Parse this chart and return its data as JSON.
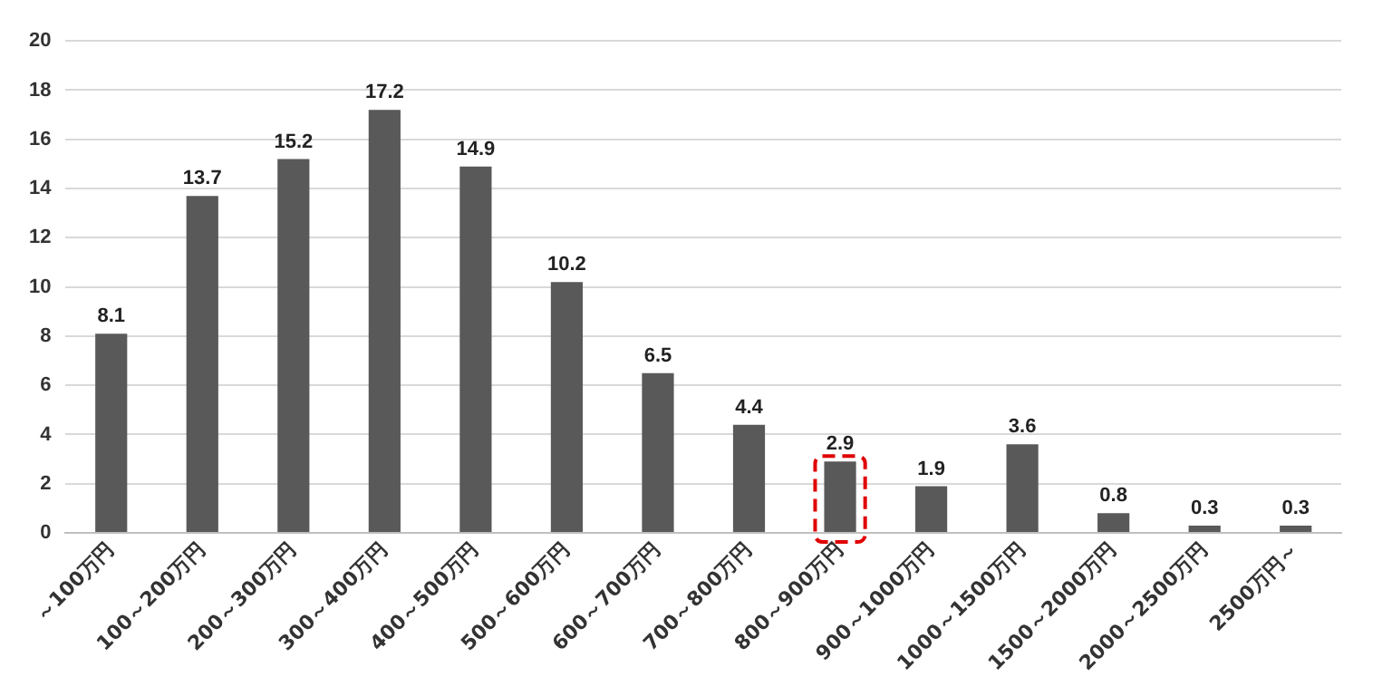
{
  "chart_data": {
    "type": "bar",
    "categories": [
      "～100万円",
      "100～200万円",
      "200～300万円",
      "300～400万円",
      "400～500万円",
      "500～600万円",
      "600～700万円",
      "700～800万円",
      "800～900万円",
      "900～1000万円",
      "1000～1500万円",
      "1500～2000万円",
      "2000～2500万円",
      "2500万円～"
    ],
    "values": [
      8.1,
      13.7,
      15.2,
      17.2,
      14.9,
      10.2,
      6.5,
      4.4,
      2.9,
      1.9,
      3.6,
      0.8,
      0.3,
      0.3
    ],
    "color": "#595959",
    "ylim": [
      0,
      20
    ],
    "yticks": [
      0,
      2,
      4,
      6,
      8,
      10,
      12,
      14,
      16,
      18,
      20
    ],
    "grid": "y",
    "data_labels": true
  }
}
